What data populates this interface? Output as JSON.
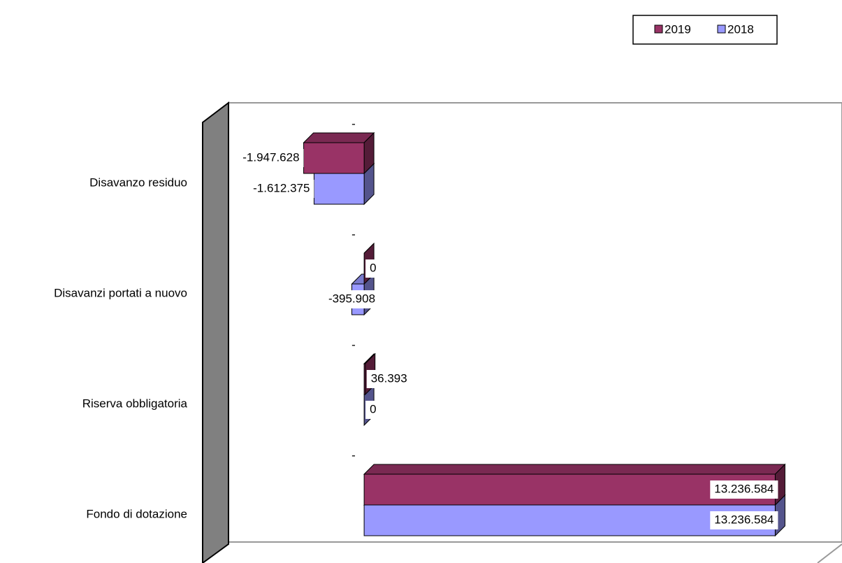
{
  "chart_data": {
    "type": "bar",
    "orientation": "horizontal",
    "categories": [
      "Disavanzo residuo",
      "Disavanzi portati a nuovo",
      "Riserva obbligatoria",
      "Fondo di dotazione"
    ],
    "series": [
      {
        "name": "2019",
        "color": "#993366",
        "values": [
          -1947628,
          0,
          36393,
          13236584
        ],
        "value_labels": [
          "-1.947.628",
          "0",
          "36.393",
          "13.236.584"
        ]
      },
      {
        "name": "2018",
        "color": "#9999ff",
        "values": [
          -1612375,
          -395908,
          0,
          13236584
        ],
        "value_labels": [
          "-1.612.375",
          "-395.908",
          "0",
          "13.236.584"
        ]
      }
    ],
    "annotations": [
      "-",
      "-",
      "-",
      "-"
    ],
    "xlim": [
      -5200000,
      14600000
    ],
    "legend": "top-right"
  }
}
